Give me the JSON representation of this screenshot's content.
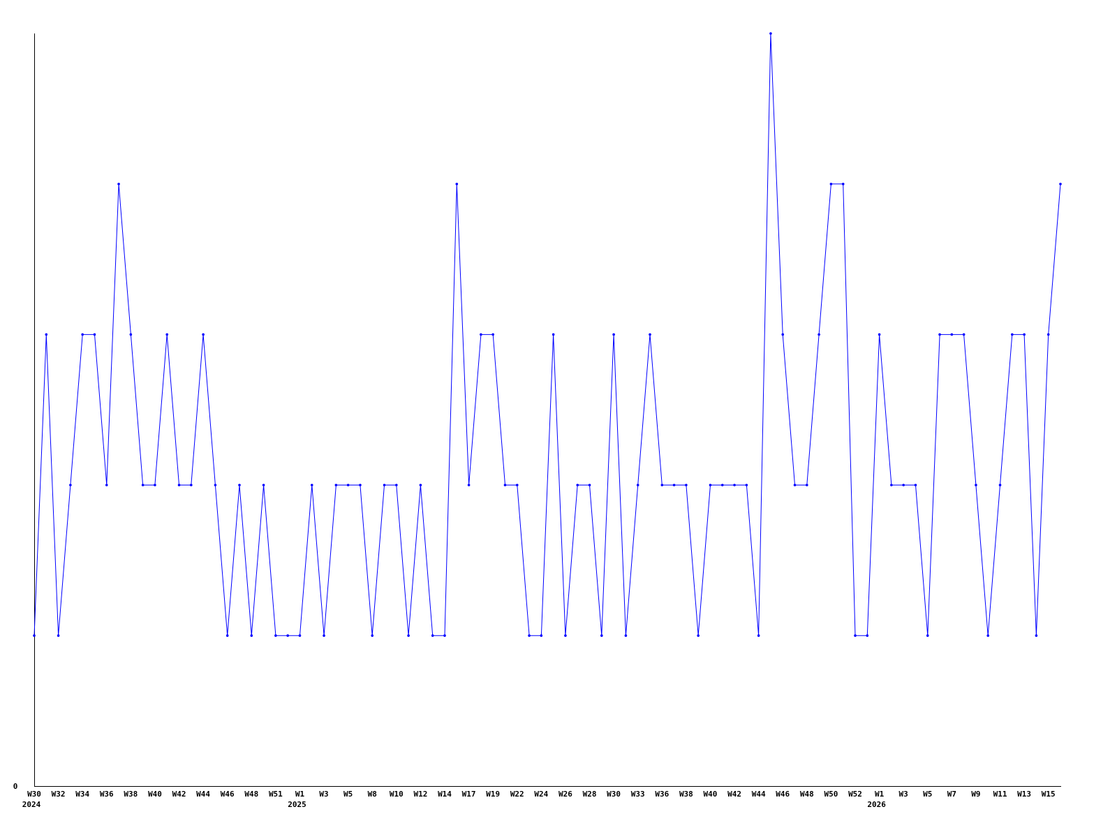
{
  "chart_data": {
    "type": "line",
    "title": "",
    "xlabel": "",
    "ylabel": "",
    "ylim": [
      0,
      5
    ],
    "y_tick_labels": [
      "0"
    ],
    "grid": false,
    "legend": "none",
    "line_color": "#0000ff",
    "axis_color": "#000000",
    "x_tick_labels": [
      "W30",
      "W32",
      "W34",
      "W36",
      "W38",
      "W40",
      "W42",
      "W44",
      "W46",
      "W48",
      "W51",
      "W1",
      "W3",
      "W5",
      "W8",
      "W10",
      "W12",
      "W14",
      "W17",
      "W19",
      "W22",
      "W24",
      "W26",
      "W28",
      "W30",
      "W33",
      "W36",
      "W38",
      "W40",
      "W42",
      "W44",
      "W46",
      "W48",
      "W50",
      "W52",
      "W1",
      "W3",
      "W5",
      "W7",
      "W9",
      "W11",
      "W13",
      "W15"
    ],
    "year_labels": [
      {
        "label": "2024",
        "at_tick": 0
      },
      {
        "label": "2025",
        "at_tick": 11
      },
      {
        "label": "2026",
        "at_tick": 35
      }
    ],
    "series": [
      {
        "values": [
          1,
          3,
          1,
          2,
          3,
          3,
          2,
          4,
          3,
          2,
          2,
          3,
          2,
          2,
          3,
          2,
          1,
          2,
          1,
          2,
          1,
          1,
          1,
          2,
          1,
          2,
          2,
          2,
          1,
          2,
          2,
          1,
          2,
          1,
          1,
          4,
          2,
          3,
          3,
          2,
          2,
          1,
          1,
          3,
          1,
          2,
          2,
          1,
          3,
          1,
          2,
          3,
          2,
          2,
          2,
          1,
          2,
          2,
          2,
          2,
          1,
          5,
          3,
          2,
          2,
          3,
          4,
          4,
          1,
          1,
          3,
          2,
          2,
          2,
          1,
          3,
          3,
          3,
          2,
          1,
          2,
          3,
          3,
          1,
          3,
          4
        ]
      }
    ]
  }
}
